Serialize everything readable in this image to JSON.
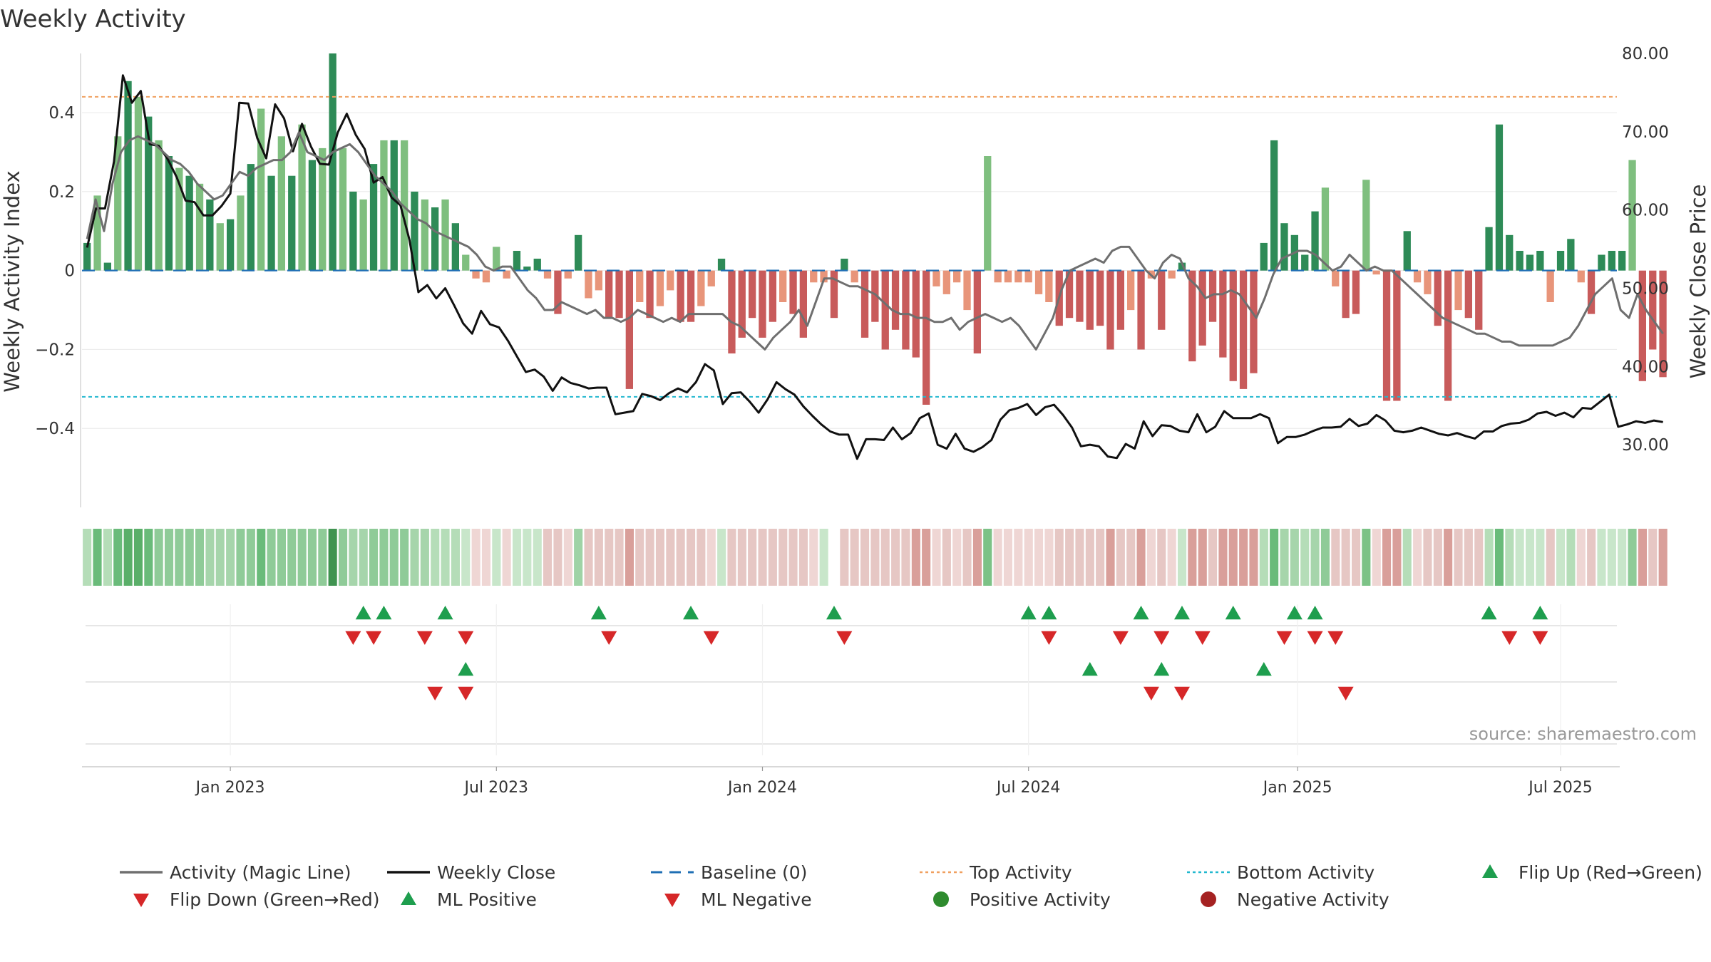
{
  "chart_data": {
    "type": "bar+line",
    "title": "Weekly Activity",
    "ylabel_left": "Weekly Activity Index",
    "ylabel_right": "Weekly Close Price",
    "left_yticks": [
      {
        "v": 0.4,
        "label": "0.4"
      },
      {
        "v": 0.2,
        "label": "0.2"
      },
      {
        "v": 0,
        "label": "0"
      },
      {
        "v": -0.2,
        "label": "−0.2"
      },
      {
        "v": -0.4,
        "label": "−0.4"
      }
    ],
    "right_yticks": [
      {
        "v": 80,
        "label": "80.00"
      },
      {
        "v": 70,
        "label": "70.00"
      },
      {
        "v": 60,
        "label": "60.00"
      },
      {
        "v": 50,
        "label": "50.00"
      },
      {
        "v": 40,
        "label": "40.00"
      },
      {
        "v": 30,
        "label": "30.00"
      }
    ],
    "left_ylim": [
      -0.6,
      0.55
    ],
    "right_ylim": [
      22,
      80
    ],
    "x_start_week": -14,
    "week_count": 150,
    "xticks": [
      {
        "w": 0,
        "label": "Jan 2023"
      },
      {
        "w": 26,
        "label": "Jul 2023"
      },
      {
        "w": 52,
        "label": "Jan 2024"
      },
      {
        "w": 78,
        "label": "Jul 2024"
      },
      {
        "w": 104.3,
        "label": "Jan 2025"
      },
      {
        "w": 130,
        "label": "Jul 2025"
      }
    ],
    "top_activity": 0.44,
    "bottom_activity": -0.32,
    "baseline": 0,
    "activity": [
      0.07,
      0.19,
      0.02,
      0.34,
      0.48,
      0.44,
      0.39,
      0.33,
      0.29,
      0.26,
      0.24,
      0.22,
      0.18,
      0.12,
      0.13,
      0.19,
      0.27,
      0.41,
      0.24,
      0.34,
      0.24,
      0.37,
      0.28,
      0.31,
      0.55,
      0.31,
      0.2,
      0.18,
      0.27,
      0.33,
      0.33,
      0.33,
      0.2,
      0.18,
      0.16,
      0.18,
      0.12,
      0.04,
      -0.02,
      -0.03,
      0.06,
      -0.02,
      0.05,
      0.01,
      0.03,
      -0.02,
      -0.11,
      -0.02,
      0.09,
      -0.07,
      -0.05,
      -0.12,
      -0.12,
      -0.3,
      -0.08,
      -0.12,
      -0.09,
      -0.05,
      -0.13,
      -0.13,
      -0.09,
      -0.04,
      0.03,
      -0.21,
      -0.17,
      -0.12,
      -0.17,
      -0.13,
      -0.08,
      -0.11,
      -0.17,
      -0.03,
      -0.03,
      -0.12,
      0.03,
      -0.03,
      -0.17,
      -0.13,
      -0.2,
      -0.15,
      -0.2,
      -0.22,
      -0.34,
      -0.04,
      -0.06,
      -0.03,
      -0.1,
      -0.21,
      0.29,
      -0.03,
      -0.03,
      -0.03,
      -0.03,
      -0.06,
      -0.08,
      -0.14,
      -0.12,
      -0.13,
      -0.15,
      -0.14,
      -0.2,
      -0.15,
      -0.1,
      -0.2,
      -0.02,
      -0.15,
      -0.02,
      0.02,
      -0.23,
      -0.19,
      -0.13,
      -0.22,
      -0.28,
      -0.3,
      -0.26,
      0.07,
      0.33,
      0.12,
      0.09,
      0.04,
      0.15,
      0.21,
      -0.04,
      -0.12,
      -0.11,
      0.23,
      -0.01,
      -0.33,
      -0.33,
      0.1,
      -0.03,
      -0.06,
      -0.14,
      -0.33,
      -0.1,
      -0.12,
      -0.15,
      0.11,
      0.37,
      0.09,
      0.05,
      0.04,
      0.05,
      -0.08,
      0.05,
      0.08,
      -0.03,
      -0.11,
      0.04,
      0.05,
      0.05,
      0.28,
      -0.28,
      -0.2,
      -0.27
    ],
    "series": [
      {
        "name": "Weekly Close",
        "values": [
          55.2,
          60.2,
          60.2,
          66.2,
          77.2,
          73.7,
          75.2,
          68.4,
          68.2,
          66.5,
          64.2,
          61.2,
          61.0,
          59.3,
          59.3,
          60.5,
          62.1,
          73.7,
          73.6,
          69.2,
          66.6,
          73.5,
          71.7,
          67.5,
          71.0,
          68.1,
          65.9,
          65.8,
          69.9,
          72.3,
          69.6,
          67.8,
          63.5,
          64.2,
          61.6,
          60.6,
          56.2,
          49.5,
          50.4,
          48.7,
          50.0,
          47.8,
          45.5,
          44.2,
          47.1,
          45.4,
          45.0,
          43.3,
          41.3,
          39.3,
          39.6,
          38.7,
          36.9,
          38.6,
          37.9,
          37.6,
          37.2,
          37.3,
          37.3,
          33.9,
          34.1,
          34.3,
          36.5,
          36.2,
          35.7,
          36.6,
          37.2,
          36.7,
          38.0,
          40.3,
          39.5,
          35.2,
          36.6,
          36.7,
          35.5,
          34.1,
          35.8,
          38.0,
          37.1,
          36.4,
          34.9,
          33.7,
          32.6,
          31.7,
          31.3,
          31.3,
          28.2,
          30.7,
          30.7,
          30.6,
          32.2,
          30.7,
          31.5,
          33.4,
          34.0,
          30.0,
          29.5,
          31.4,
          29.5,
          29.1,
          29.7,
          30.6,
          33.2,
          34.4,
          34.7,
          35.2,
          33.8,
          34.8,
          35.1,
          33.8,
          32.2,
          29.8,
          30.0,
          29.8,
          28.5,
          28.3,
          30.1,
          29.5,
          33.0,
          31.1,
          32.5,
          32.4,
          31.8,
          31.6,
          33.9,
          31.6,
          32.3,
          34.3,
          33.4,
          33.4,
          33.4,
          33.9,
          33.4,
          30.2,
          31.0,
          31.0,
          31.3,
          31.8,
          32.2,
          32.2,
          32.3,
          33.3,
          32.4,
          32.7,
          33.8,
          33.1,
          31.8,
          31.6,
          31.8,
          32.2,
          31.8,
          31.4,
          31.2,
          31.5,
          31.1,
          30.8,
          31.7,
          31.7,
          32.4,
          32.7,
          32.8,
          33.2,
          34.0,
          34.2,
          33.7,
          34.1,
          33.5,
          34.7,
          34.6,
          35.5,
          36.4,
          32.3,
          32.6,
          33.0,
          32.8,
          33.1,
          32.9
        ]
      },
      {
        "name": "Activity (Magic Line)",
        "values": [
          0.08,
          0.18,
          0.1,
          0.22,
          0.3,
          0.33,
          0.34,
          0.33,
          0.32,
          0.3,
          0.28,
          0.27,
          0.25,
          0.22,
          0.2,
          0.18,
          0.19,
          0.22,
          0.25,
          0.24,
          0.26,
          0.27,
          0.28,
          0.28,
          0.3,
          0.35,
          0.3,
          0.29,
          0.28,
          0.3,
          0.31,
          0.32,
          0.3,
          0.27,
          0.24,
          0.22,
          0.2,
          0.17,
          0.15,
          0.13,
          0.12,
          0.1,
          0.09,
          0.08,
          0.07,
          0.06,
          0.04,
          0.01,
          0.0,
          0.01,
          0.01,
          -0.02,
          -0.05,
          -0.07,
          -0.1,
          -0.1,
          -0.08,
          -0.09,
          -0.1,
          -0.11,
          -0.1,
          -0.12,
          -0.12,
          -0.13,
          -0.12,
          -0.1,
          -0.11,
          -0.12,
          -0.13,
          -0.12,
          -0.13,
          -0.11,
          -0.11,
          -0.11,
          -0.11,
          -0.11,
          -0.13,
          -0.14,
          -0.16,
          -0.18,
          -0.2,
          -0.17,
          -0.15,
          -0.13,
          -0.1,
          -0.14,
          -0.08,
          -0.02,
          -0.02,
          -0.03,
          -0.04,
          -0.04,
          -0.05,
          -0.06,
          -0.08,
          -0.1,
          -0.11,
          -0.11,
          -0.12,
          -0.12,
          -0.13,
          -0.13,
          -0.12,
          -0.15,
          -0.13,
          -0.12,
          -0.11,
          -0.12,
          -0.13,
          -0.12,
          -0.14,
          -0.17,
          -0.2,
          -0.16,
          -0.12,
          -0.05,
          0.0,
          0.01,
          0.02,
          0.03,
          0.02,
          0.05,
          0.06,
          0.06,
          0.03,
          0.0,
          -0.02,
          0.02,
          0.04,
          0.03,
          -0.02,
          -0.04,
          -0.07,
          -0.06,
          -0.06,
          -0.05,
          -0.06,
          -0.09,
          -0.12,
          -0.07,
          -0.01,
          0.03,
          0.04,
          0.05,
          0.05,
          0.04,
          0.02,
          0.0,
          0.01,
          0.04,
          0.02,
          0.0,
          0.01,
          0.0,
          0.0,
          -0.02,
          -0.04,
          -0.06,
          -0.08,
          -0.1,
          -0.12,
          -0.13,
          -0.14,
          -0.15,
          -0.16,
          -0.16,
          -0.17,
          -0.18,
          -0.18,
          -0.19,
          -0.19,
          -0.19,
          -0.19,
          -0.19,
          -0.18,
          -0.17,
          -0.14,
          -0.1,
          -0.06,
          -0.04,
          -0.02,
          -0.1,
          -0.12,
          -0.06,
          -0.1,
          -0.13,
          -0.16
        ]
      }
    ],
    "strip_colors": [
      "#b5ddb8",
      "#6abb7a",
      "#b5ddb8",
      "#6abb7a",
      "#5aaf69",
      "#5aaf69",
      "#6abb7a",
      "#8fcb98",
      "#8fcb98",
      "#8fcb98",
      "#8fcb98",
      "#8fcb98",
      "#a6d5ab",
      "#a6d5ab",
      "#a6d5ab",
      "#8fcb98",
      "#8fcb98",
      "#6abb7a",
      "#8fcb98",
      "#8fcb98",
      "#8fcb98",
      "#8fcb98",
      "#8fcb98",
      "#8fcb98",
      "#3f9350",
      "#8fcb98",
      "#a6d5ab",
      "#a6d5ab",
      "#8fcb98",
      "#8fcb98",
      "#8fcb98",
      "#8fcb98",
      "#a6d5ab",
      "#a6d5ab",
      "#b5ddb8",
      "#b5ddb8",
      "#b5ddb8",
      "#c8e6ca",
      "#efd6d4",
      "#efd6d4",
      "#c8e6ca",
      "#efd6d4",
      "#c8e6ca",
      "#c8e6ca",
      "#c8e6ca",
      "#e6c7c4",
      "#e6c7c4",
      "#efd6d4",
      "#9fd3a6",
      "#e6c7c4",
      "#e6c7c4",
      "#e6c7c4",
      "#e6c7c4",
      "#d99f9a",
      "#e6c7c4",
      "#e6c7c4",
      "#e6c7c4",
      "#e6c7c4",
      "#e6c7c4",
      "#e6c7c4",
      "#e6c7c4",
      "#efd6d4",
      "#c8e6ca",
      "#e6c7c4",
      "#e6c7c4",
      "#e6c7c4",
      "#e6c7c4",
      "#e6c7c4",
      "#e6c7c4",
      "#e6c7c4",
      "#e6c7c4",
      "#efd6d4",
      "#c8e6ca",
      "#ffffff",
      "#e6c7c4",
      "#e6c7c4",
      "#e6c7c4",
      "#e6c7c4",
      "#e6c7c4",
      "#e6c7c4",
      "#e6c7c4",
      "#d99f9a",
      "#d99f9a",
      "#efd6d4",
      "#e6c7c4",
      "#efd6d4",
      "#e6c7c4",
      "#d99f9a",
      "#7cc286",
      "#efd6d4",
      "#efd6d4",
      "#efd6d4",
      "#efd6d4",
      "#efd6d4",
      "#efd6d4",
      "#e6c7c4",
      "#e6c7c4",
      "#e6c7c4",
      "#e6c7c4",
      "#e6c7c4",
      "#d99f9a",
      "#e6c7c4",
      "#e6c7c4",
      "#d99f9a",
      "#efd6d4",
      "#e6c7c4",
      "#efd6d4",
      "#c8e6ca",
      "#d99f9a",
      "#d99f9a",
      "#e6c7c4",
      "#d99f9a",
      "#d99f9a",
      "#d99f9a",
      "#d99f9a",
      "#b5ddb8",
      "#6abb7a",
      "#a6d5ab",
      "#a6d5ab",
      "#b5ddb8",
      "#a6d5ab",
      "#8fcb98",
      "#e6c7c4",
      "#e6c7c4",
      "#e6c7c4",
      "#7cc286",
      "#efd6d4",
      "#d99f9a",
      "#d99f9a",
      "#b5ddb8",
      "#efd6d4",
      "#e6c7c4",
      "#e6c7c4",
      "#d99f9a",
      "#e6c7c4",
      "#e6c7c4",
      "#e6c7c4",
      "#b5ddb8",
      "#6abb7a",
      "#b5ddb8",
      "#c8e6ca",
      "#c8e6ca",
      "#c8e6ca",
      "#e6c7c4",
      "#c8e6ca",
      "#b5ddb8",
      "#efd6d4",
      "#e6c7c4",
      "#c8e6ca",
      "#c8e6ca",
      "#c8e6ca",
      "#8fcb98",
      "#d99f9a",
      "#e6c7c4",
      "#d99f9a"
    ],
    "flip_up_weeks": [
      27,
      29,
      35,
      50,
      59,
      73,
      92,
      94,
      103,
      107,
      112,
      118,
      120,
      137,
      142
    ],
    "flip_down_weeks": [
      26,
      28,
      33,
      37,
      51,
      61,
      74,
      94,
      101,
      105,
      109,
      117,
      120,
      122,
      139,
      142
    ],
    "ml_positive_weeks": [
      37,
      98,
      105,
      115
    ],
    "ml_negative_weeks": [
      34,
      37,
      104,
      107,
      123
    ],
    "source": "source: sharemaestro.com",
    "legend": [
      {
        "label": "Activity (Magic Line)",
        "kind": "line",
        "color": "#6f6f6f"
      },
      {
        "label": "Weekly Close",
        "kind": "line",
        "color": "#111111"
      },
      {
        "label": "Baseline (0)",
        "kind": "dash",
        "color": "#1f6fb4"
      },
      {
        "label": "Top Activity",
        "kind": "dot",
        "color": "#f0a060"
      },
      {
        "label": "Bottom Activity",
        "kind": "dot",
        "color": "#22b8cf"
      },
      {
        "label": "Flip Up (Red→Green)",
        "kind": "up",
        "color": "#1e9e4e"
      },
      {
        "label": "Flip Down (Green→Red)",
        "kind": "down",
        "color": "#d62728"
      },
      {
        "label": "ML Positive",
        "kind": "up",
        "color": "#1e9e4e"
      },
      {
        "label": "ML Negative",
        "kind": "down",
        "color": "#d62728"
      },
      {
        "label": "Positive Activity",
        "kind": "circle",
        "color": "#2e8b2e"
      },
      {
        "label": "Negative Activity",
        "kind": "circle",
        "color": "#a52222"
      }
    ],
    "colors": {
      "bar_pos_strong": "#2e8b57",
      "bar_pos_light": "#7fbf7f",
      "bar_neg_strong": "#c85b5b",
      "bar_neg_light": "#e8957a"
    }
  }
}
